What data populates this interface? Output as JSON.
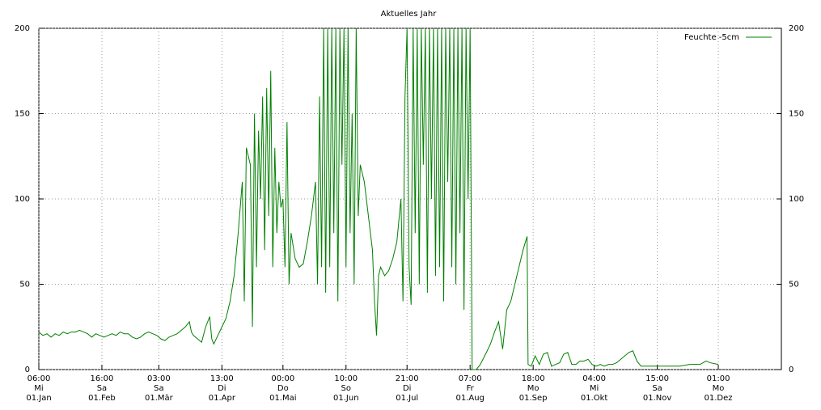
{
  "chart_data": {
    "type": "line",
    "title": "Aktuelles Jahr",
    "xlim": [
      0,
      365
    ],
    "ylim": [
      0,
      200
    ],
    "yticks": [
      0,
      50,
      100,
      150,
      200
    ],
    "grid": true,
    "legend": "top-right",
    "right_axis": true,
    "xticks": [
      {
        "value": 0,
        "label": "06:00\nMi\n01.Jan"
      },
      {
        "value": 31,
        "label": "16:00\nSa\n01.Feb"
      },
      {
        "value": 59,
        "label": "03:00\nSa\n01.Mär"
      },
      {
        "value": 90,
        "label": "13:00\nDi\n01.Apr"
      },
      {
        "value": 120,
        "label": "00:00\nDo\n01.Mai"
      },
      {
        "value": 151,
        "label": "10:00\nSo\n01.Jun"
      },
      {
        "value": 181,
        "label": "21:00\nDi\n01.Jul"
      },
      {
        "value": 212,
        "label": "07:00\nFr\n01.Aug"
      },
      {
        "value": 243,
        "label": "18:00\nMo\n01.Sep"
      },
      {
        "value": 273,
        "label": "04:00\nMi\n01.Okt"
      },
      {
        "value": 304,
        "label": "15:00\nSa\n01.Nov"
      },
      {
        "value": 334,
        "label": "01:00\nMo\n01.Dez"
      }
    ],
    "x": [
      0,
      2,
      4,
      6,
      8,
      10,
      12,
      14,
      16,
      18,
      20,
      22,
      24,
      26,
      28,
      30,
      32,
      34,
      36,
      38,
      40,
      42,
      44,
      46,
      48,
      50,
      52,
      54,
      56,
      58,
      60,
      62,
      64,
      66,
      68,
      70,
      72,
      74,
      75,
      76,
      78,
      80,
      82,
      84,
      85,
      86,
      88,
      90,
      92,
      94,
      96,
      98,
      100,
      101,
      102,
      104,
      105,
      106,
      107,
      108,
      109,
      110,
      111,
      112,
      113,
      114,
      115,
      116,
      117,
      118,
      119,
      120,
      121,
      122,
      123,
      124,
      126,
      128,
      130,
      132,
      134,
      136,
      137,
      138,
      139,
      140,
      141,
      142,
      143,
      144,
      145,
      146,
      147,
      148,
      149,
      150,
      151,
      152,
      153,
      154,
      155,
      156,
      157,
      158,
      160,
      162,
      164,
      165,
      166,
      167,
      168,
      170,
      172,
      174,
      176,
      178,
      179,
      180,
      181,
      182,
      183,
      184,
      185,
      186,
      187,
      188,
      189,
      190,
      191,
      192,
      193,
      194,
      195,
      196,
      197,
      198,
      199,
      200,
      201,
      202,
      203,
      204,
      205,
      206,
      207,
      208,
      209,
      210,
      211,
      212,
      213,
      215,
      217,
      220,
      222,
      224,
      226,
      228,
      230,
      232,
      234,
      236,
      238,
      240,
      240.5,
      242,
      244,
      246,
      248,
      250,
      252,
      254,
      256,
      258,
      260,
      262,
      264,
      266,
      268,
      270,
      272,
      274,
      276,
      278,
      280,
      282,
      284,
      286,
      288,
      290,
      292,
      294,
      296,
      300,
      305,
      310,
      315,
      320,
      325,
      328,
      330,
      334
    ],
    "series": [
      {
        "name": "Feuchte -5cm",
        "color": "#008000",
        "values": [
          22,
          20,
          21,
          19,
          21,
          20,
          22,
          21,
          22,
          22,
          23,
          22,
          21,
          19,
          21,
          20,
          19,
          20,
          21,
          20,
          22,
          21,
          21,
          19,
          18,
          19,
          21,
          22,
          21,
          20,
          18,
          17,
          19,
          20,
          21,
          23,
          25,
          28,
          22,
          20,
          18,
          16,
          25,
          31,
          18,
          15,
          20,
          25,
          30,
          40,
          55,
          80,
          110,
          40,
          130,
          120,
          25,
          150,
          60,
          140,
          100,
          160,
          70,
          165,
          90,
          175,
          60,
          130,
          80,
          110,
          95,
          100,
          60,
          145,
          50,
          80,
          65,
          60,
          62,
          75,
          90,
          110,
          50,
          160,
          60,
          200,
          45,
          200,
          60,
          200,
          80,
          200,
          40,
          200,
          120,
          200,
          60,
          200,
          80,
          150,
          50,
          200,
          90,
          120,
          110,
          90,
          70,
          40,
          20,
          55,
          60,
          55,
          58,
          65,
          75,
          100,
          40,
          160,
          200,
          60,
          38,
          200,
          80,
          200,
          50,
          200,
          120,
          200,
          45,
          200,
          100,
          200,
          55,
          200,
          60,
          200,
          40,
          200,
          110,
          200,
          60,
          200,
          50,
          200,
          80,
          200,
          35,
          200,
          100,
          200,
          0,
          0,
          3,
          10,
          15,
          22,
          28,
          12,
          35,
          40,
          50,
          60,
          70,
          78,
          3,
          2,
          8,
          3,
          9,
          10,
          2,
          3,
          4,
          9,
          10,
          3,
          3,
          5,
          5,
          6,
          3,
          2,
          3,
          2,
          3,
          3,
          4,
          6,
          8,
          10,
          11,
          5,
          2,
          2,
          2,
          2,
          2,
          3,
          3,
          5,
          4,
          3
        ]
      }
    ]
  }
}
